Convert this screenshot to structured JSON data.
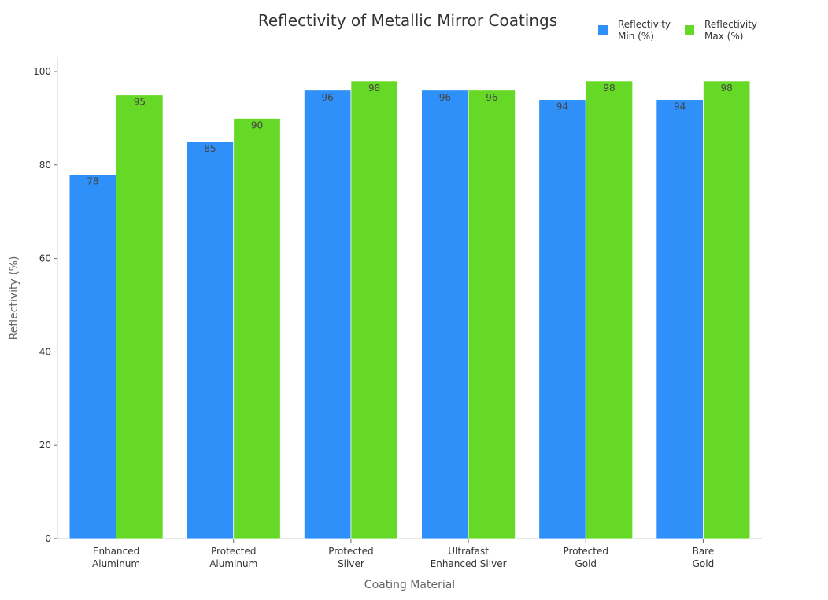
{
  "chart_data": {
    "type": "bar",
    "title": "Reflectivity of Metallic Mirror Coatings",
    "xlabel": "Coating Material",
    "ylabel": "Reflectivity (%)",
    "categories": [
      [
        "Enhanced",
        "Aluminum"
      ],
      [
        "Protected",
        "Aluminum"
      ],
      [
        "Protected",
        "Silver"
      ],
      [
        "Ultrafast",
        "Enhanced Silver"
      ],
      [
        "Protected",
        "Gold"
      ],
      [
        "Bare",
        "Gold"
      ]
    ],
    "series": [
      {
        "name": "Reflectivity\nMin (%)",
        "color": "#2e90f8",
        "values": [
          78,
          85,
          96,
          96,
          94,
          94
        ]
      },
      {
        "name": "Reflectivity\nMax (%)",
        "color": "#66d926",
        "values": [
          95,
          90,
          98,
          96,
          98,
          98
        ]
      }
    ],
    "ylim": [
      0,
      100
    ],
    "yticks": [
      0,
      20,
      40,
      60,
      80,
      100
    ],
    "grid": false,
    "legend": "top-right"
  }
}
